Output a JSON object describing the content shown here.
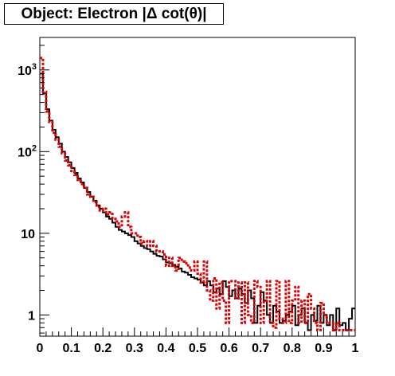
{
  "chart_data": {
    "type": "histogram",
    "title": "Object: Electron |Δ cot(θ)|",
    "xlabel": "",
    "ylabel": "",
    "xlim": [
      0,
      1
    ],
    "ylim": [
      0.55,
      2500
    ],
    "y_scale": "log",
    "grid": false,
    "legend": "none",
    "x_tick_labels": [
      "0",
      "0.1",
      "0.2",
      "0.3",
      "0.4",
      "0.5",
      "0.6",
      "0.7",
      "0.8",
      "0.9",
      "1"
    ],
    "y_tick_labels": [
      {
        "value": 1,
        "base": "1",
        "exp": ""
      },
      {
        "value": 10,
        "base": "10",
        "exp": ""
      },
      {
        "value": 100,
        "base": "10",
        "exp": "2"
      },
      {
        "value": 1000,
        "base": "10",
        "exp": "3"
      }
    ],
    "bin_width": 0.01,
    "series": [
      {
        "style": "solid",
        "color": "#000000",
        "values": [
          900,
          520,
          330,
          240,
          185,
          150,
          125,
          100,
          86,
          74,
          63,
          55,
          47,
          42,
          36,
          32,
          28,
          25,
          22,
          20,
          18,
          16,
          15,
          13.5,
          12,
          11,
          10.5,
          10,
          9.5,
          9,
          8,
          7.5,
          7,
          6.6,
          6.4,
          6,
          5.6,
          5.3,
          5.2,
          4.8,
          4.4,
          4.3,
          4.1,
          3.9,
          3.7,
          3.4,
          3.3,
          3.1,
          2.9,
          2.8,
          2.7,
          2.5,
          2.3,
          2.6,
          2.3,
          1.9,
          2.1,
          1.8,
          2.6,
          2.2,
          1.7,
          2.0,
          1.6,
          2.1,
          1.8,
          1.4,
          2.0,
          1.6,
          0.8,
          1.3,
          1.9,
          1.5,
          1.0,
          0.8,
          1.3,
          1.1,
          0.8,
          0.85,
          1.0,
          1.1,
          1.3,
          0.75,
          1.0,
          1.2,
          0.8,
          0.65,
          1.0,
          0.85,
          1.3,
          0.8,
          1.0,
          0.75,
          1.0,
          0.65,
          1.2,
          0.75,
          0.8,
          0.65,
          0.9,
          1.2
        ]
      },
      {
        "style": "dotted",
        "color": "#dd0000",
        "values": [
          1400,
          540,
          310,
          230,
          170,
          140,
          115,
          95,
          78,
          68,
          58,
          52,
          45,
          40,
          36,
          30,
          28,
          24,
          21,
          19,
          20,
          17,
          18,
          15,
          14,
          12,
          16,
          18,
          12,
          10,
          10,
          9,
          7.5,
          8,
          7,
          8,
          7,
          6,
          6,
          5.5,
          4,
          5,
          4,
          3.5,
          5,
          4.5,
          4.3,
          3.8,
          3.5,
          4.5,
          3.2,
          2.5,
          4.5,
          2,
          1.5,
          2.8,
          1.2,
          2.5,
          1.5,
          0.8,
          2.6,
          2.6,
          1.6,
          2.5,
          0.8,
          2.5,
          1.0,
          0.8,
          2.6,
          2.2,
          0.8,
          1.5,
          2.6,
          0.8,
          0.7,
          2.6,
          0.9,
          0.8,
          2.6,
          0.8,
          1.5,
          2.2,
          0.8,
          1.5,
          0.8,
          1.8,
          1.2,
          0.8,
          0.65,
          1.4,
          1.0,
          0.8,
          0.8,
          0.65,
          0.8,
          0.65,
          0.65,
          0.65,
          0.65,
          0.65
        ]
      }
    ]
  }
}
